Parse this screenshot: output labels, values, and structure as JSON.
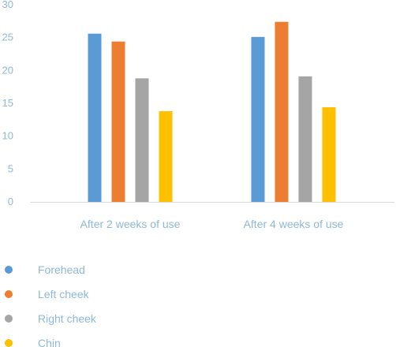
{
  "chart_data": {
    "type": "bar",
    "categories": [
      "After 2 weeks of use",
      "After 4 weeks of use"
    ],
    "series": [
      {
        "name": "Forehead",
        "color": "#5b9bd5",
        "values": [
          25.6,
          25.1
        ]
      },
      {
        "name": "Left cheek",
        "color": "#ed7d31",
        "values": [
          24.4,
          27.4
        ]
      },
      {
        "name": "Right cheek",
        "color": "#a5a5a5",
        "values": [
          18.8,
          19.1
        ]
      },
      {
        "name": "Chin",
        "color": "#ffc000",
        "values": [
          13.8,
          14.4
        ]
      }
    ],
    "yticks": [
      "0",
      "5",
      "10",
      "15",
      "20",
      "25",
      "30"
    ],
    "ylim": [
      0,
      30
    ],
    "legend_position": "bottom-left",
    "grid": false
  }
}
